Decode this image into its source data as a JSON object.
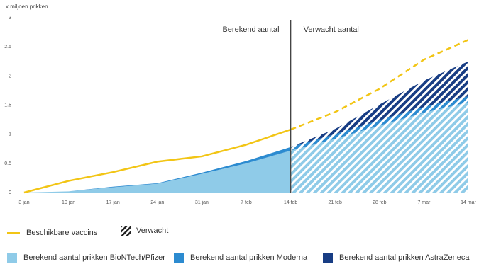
{
  "chart_data": {
    "type": "area",
    "unit_label": "x miljoen prikken",
    "x_ticks": [
      "3 jan",
      "10 jan",
      "17 jan",
      "24 jan",
      "31 jan",
      "7 feb",
      "14 feb",
      "21 feb",
      "28 feb",
      "7 mar",
      "14 mar"
    ],
    "y_ticks": [
      "0",
      "0.5",
      "1",
      "1.5",
      "2",
      "2.5",
      "3"
    ],
    "ylim": [
      0,
      3
    ],
    "split_label": "14 feb",
    "phase_labels": {
      "left": "Berekend aantal",
      "right": "Verwacht aantal"
    },
    "line_series": {
      "name": "Beschikbare vaccins",
      "color": "#f2c515",
      "values": [
        0,
        0.2,
        0.35,
        0.53,
        0.62,
        0.82,
        1.08,
        1.38,
        1.78,
        2.28,
        2.62
      ]
    },
    "stacked_series": [
      {
        "name": "Berekend aantal prikken BioNTech/Pfizer",
        "color": "#8fcbe8",
        "values": [
          0,
          0.02,
          0.09,
          0.15,
          0.32,
          0.5,
          0.72,
          0.92,
          1.15,
          1.37,
          1.55
        ]
      },
      {
        "name": "Berekend aantal prikken Moderna",
        "color": "#2c8bd0",
        "values": [
          0,
          0,
          0.01,
          0.01,
          0.02,
          0.04,
          0.06,
          0.08,
          0.09,
          0.1,
          0.1
        ]
      },
      {
        "name": "Berekend aantal prikken AstraZeneca",
        "color": "#183d84",
        "values": [
          0,
          0,
          0,
          0,
          0,
          0,
          0,
          0.09,
          0.27,
          0.45,
          0.6
        ]
      }
    ],
    "legend": {
      "line": "Beschikbare vaccins",
      "hatch": "Verwacht",
      "pfizer": "Berekend aantal prikken BioNTech/Pfizer",
      "moderna": "Berekend aantal prikken Moderna",
      "astra": "Berekend aantal prikken AstraZeneca"
    },
    "grid": false,
    "legend_placement": "bottom"
  }
}
